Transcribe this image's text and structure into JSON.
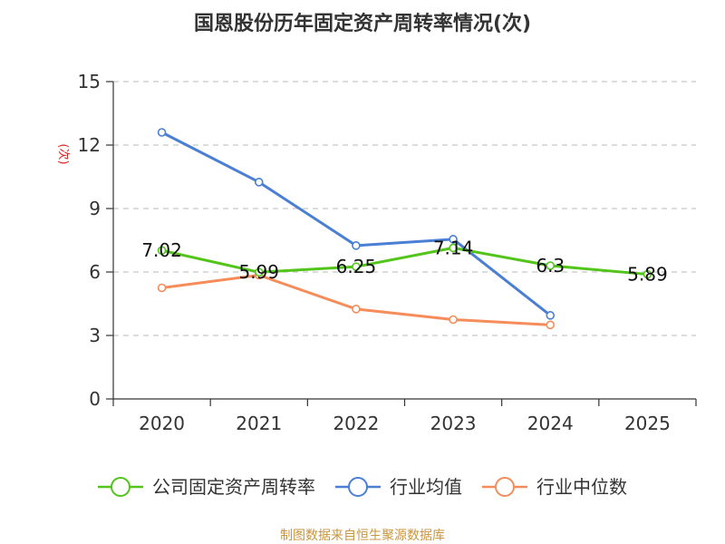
{
  "title": "国恩股份历年固定资产周转率情况(次)",
  "source": "制图数据来自恒生聚源数据库",
  "chart_data": {
    "type": "line",
    "title": "国恩股份历年固定资产周转率情况(次)",
    "xlabel": "",
    "ylabel": "(次)",
    "categories": [
      "2020",
      "2021",
      "2022",
      "2023",
      "2024",
      "2025"
    ],
    "ylim": [
      0,
      15
    ],
    "yticks": [
      0,
      3,
      6,
      9,
      12,
      15
    ],
    "grid": true,
    "legend_position": "bottom",
    "series": [
      {
        "name": "公司固定资产周转率",
        "color": "#52c41a",
        "values": [
          7.02,
          5.99,
          6.25,
          7.14,
          6.3,
          5.89
        ],
        "labels": [
          "7.02",
          "5.99",
          "6.25",
          "7.14",
          "6.3",
          "5.89"
        ]
      },
      {
        "name": "行业均值",
        "color": "#4a7fd4",
        "values": [
          12.6,
          10.25,
          7.25,
          7.55,
          3.95,
          null
        ]
      },
      {
        "name": "行业中位数",
        "color": "#f58c5a",
        "values": [
          5.25,
          5.85,
          4.25,
          3.75,
          3.5,
          null
        ]
      }
    ]
  }
}
